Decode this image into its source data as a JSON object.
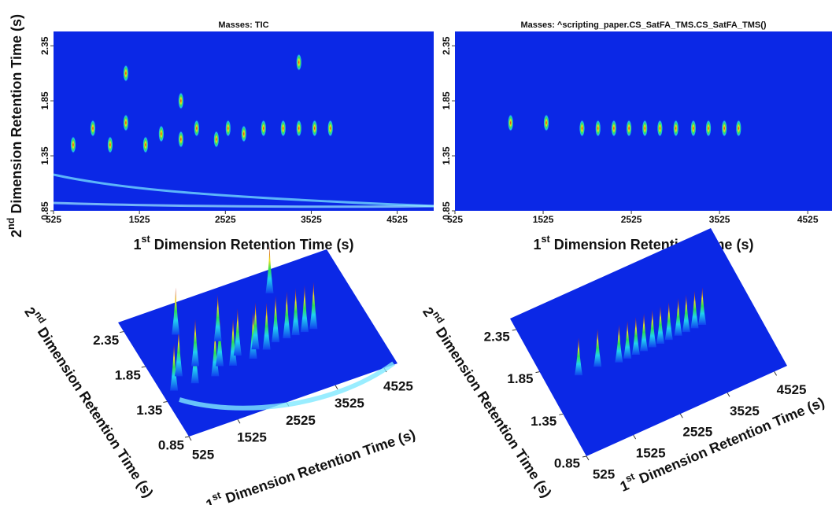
{
  "chart_data": [
    {
      "type": "heatmap",
      "title": "Masses:  TIC",
      "x_label": "1st Dimension Retention Time (s)",
      "y_label": "2nd Dimension Retention Time (s)",
      "background": "#0b28e6",
      "xlim": [
        525,
        4950
      ],
      "ylim": [
        0.85,
        2.48
      ],
      "xticks": [
        525,
        1525,
        2525,
        3525,
        4525
      ],
      "yticks": [
        0.85,
        1.35,
        1.85,
        2.35
      ],
      "x": [
        754,
        983,
        1184,
        1367,
        1596,
        1779,
        2008,
        2191,
        2420,
        2557,
        2740,
        2969,
        3198,
        3381,
        3564,
        3747,
        2008,
        1367,
        3381
      ],
      "y": [
        1.45,
        1.6,
        1.45,
        1.65,
        1.45,
        1.55,
        1.5,
        1.6,
        1.5,
        1.6,
        1.55,
        1.6,
        1.6,
        1.6,
        1.6,
        1.6,
        1.85,
        2.1,
        2.2
      ]
    },
    {
      "type": "heatmap",
      "title": "Masses:  ^scripting_paper.CS_SatFA_TMS.CS_SatFA_TMS()",
      "x_label": "1st Dimension Retention Time (s)",
      "y_label": "2nd Dimension Retention Time (s)",
      "background": "#0b28e6",
      "xlim": [
        525,
        4800
      ],
      "ylim": [
        0.85,
        2.48
      ],
      "xticks": [
        525,
        1525,
        2525,
        3525,
        4525
      ],
      "yticks": [
        0.85,
        1.35,
        1.85,
        2.35
      ],
      "x": [
        1156,
        1561,
        1966,
        2147,
        2327,
        2498,
        2678,
        2849,
        3030,
        3228,
        3399,
        3579,
        3741
      ],
      "y": [
        1.65,
        1.65,
        1.6,
        1.6,
        1.6,
        1.6,
        1.6,
        1.6,
        1.6,
        1.6,
        1.6,
        1.6,
        1.6
      ]
    },
    {
      "type": "surface",
      "x_label": "1st Dimension Retention Time (s)",
      "y_label": "2nd Dimension Retention Time (s)",
      "background": "#0b28e6",
      "xlim": [
        525,
        4800
      ],
      "ylim": [
        0.85,
        2.48
      ],
      "xticks": [
        525,
        1525,
        2525,
        3525,
        4525
      ],
      "yticks": [
        0.85,
        1.35,
        1.85,
        2.35
      ],
      "x": [
        754,
        983,
        1184,
        1367,
        1596,
        1779,
        2008,
        2191,
        2420,
        2557,
        2740,
        2969,
        3198,
        3381,
        3564,
        3747,
        2008,
        1367,
        3381
      ],
      "y": [
        1.45,
        1.6,
        1.45,
        1.65,
        1.45,
        1.55,
        1.5,
        1.6,
        1.5,
        1.6,
        1.55,
        1.6,
        1.6,
        1.6,
        1.6,
        1.6,
        1.85,
        2.1,
        2.2
      ]
    },
    {
      "type": "surface",
      "x_label": "1st Dimension Retention Time (s)",
      "y_label": "2nd Dimension Retention Time (s)",
      "background": "#0b28e6",
      "xlim": [
        525,
        4800
      ],
      "ylim": [
        0.85,
        2.48
      ],
      "xticks": [
        525,
        1525,
        2525,
        3525,
        4525
      ],
      "yticks": [
        0.85,
        1.35,
        1.85,
        2.35
      ],
      "x": [
        1156,
        1561,
        1966,
        2147,
        2327,
        2498,
        2678,
        2849,
        3030,
        3228,
        3399,
        3579,
        3741
      ],
      "y": [
        1.65,
        1.65,
        1.6,
        1.6,
        1.6,
        1.6,
        1.6,
        1.6,
        1.6,
        1.6,
        1.6,
        1.6,
        1.6
      ]
    }
  ]
}
